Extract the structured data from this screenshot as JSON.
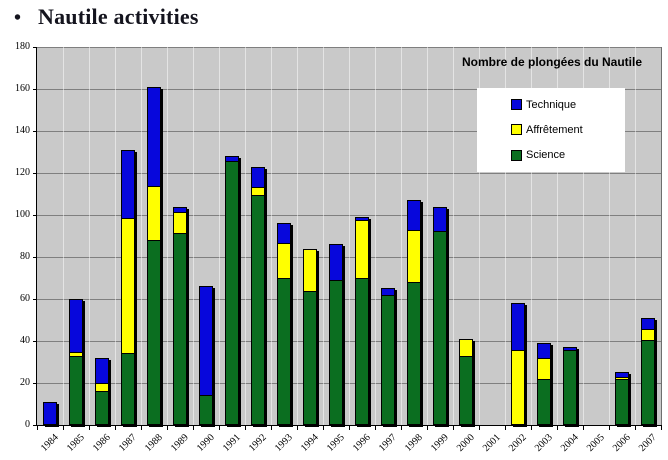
{
  "page": {
    "title": "Nautile activities",
    "bullet": "•"
  },
  "chart_data": {
    "type": "bar",
    "stacked": true,
    "title": "Nombre de plongées du Nautile",
    "xlabel": "",
    "ylabel": "",
    "ylim": [
      0,
      180
    ],
    "ytick_step": 20,
    "grid": "horizontal",
    "legend_position": "inset-top-right",
    "legend_order": [
      "Technique",
      "Affrêtement",
      "Science"
    ],
    "categories": [
      "1984",
      "1985",
      "1986",
      "1987",
      "1988",
      "1989",
      "1990",
      "1991",
      "1992",
      "1993",
      "1994",
      "1995",
      "1996",
      "1997",
      "1998",
      "1999",
      "2000",
      "2001",
      "2002",
      "2003",
      "2004",
      "2005",
      "2006",
      "2007"
    ],
    "series": [
      {
        "name": "Science",
        "color": "#0B6E20",
        "values": [
          0,
          33,
          16,
          34,
          88,
          92,
          14,
          126,
          110,
          70,
          64,
          69,
          70,
          62,
          68,
          93,
          33,
          0,
          0,
          22,
          36,
          0,
          22,
          41
        ]
      },
      {
        "name": "Affrêtement",
        "color": "#FFFF00",
        "values": [
          0,
          2,
          4,
          65,
          26,
          10,
          0,
          0,
          4,
          17,
          20,
          0,
          28,
          0,
          25,
          0,
          8,
          0,
          36,
          10,
          0,
          0,
          1,
          5
        ]
      },
      {
        "name": "Technique",
        "color": "#0707DC",
        "values": [
          11,
          25,
          12,
          32,
          47,
          2,
          52,
          2,
          9,
          9,
          0,
          17,
          1,
          3,
          14,
          11,
          0,
          0,
          22,
          7,
          1,
          0,
          2,
          5
        ]
      }
    ],
    "colors": {
      "plot_background": "#C9C9C9",
      "gridline": "#7F7F7F",
      "axis": "#000000",
      "legend_background": "#FFFFFF"
    }
  }
}
